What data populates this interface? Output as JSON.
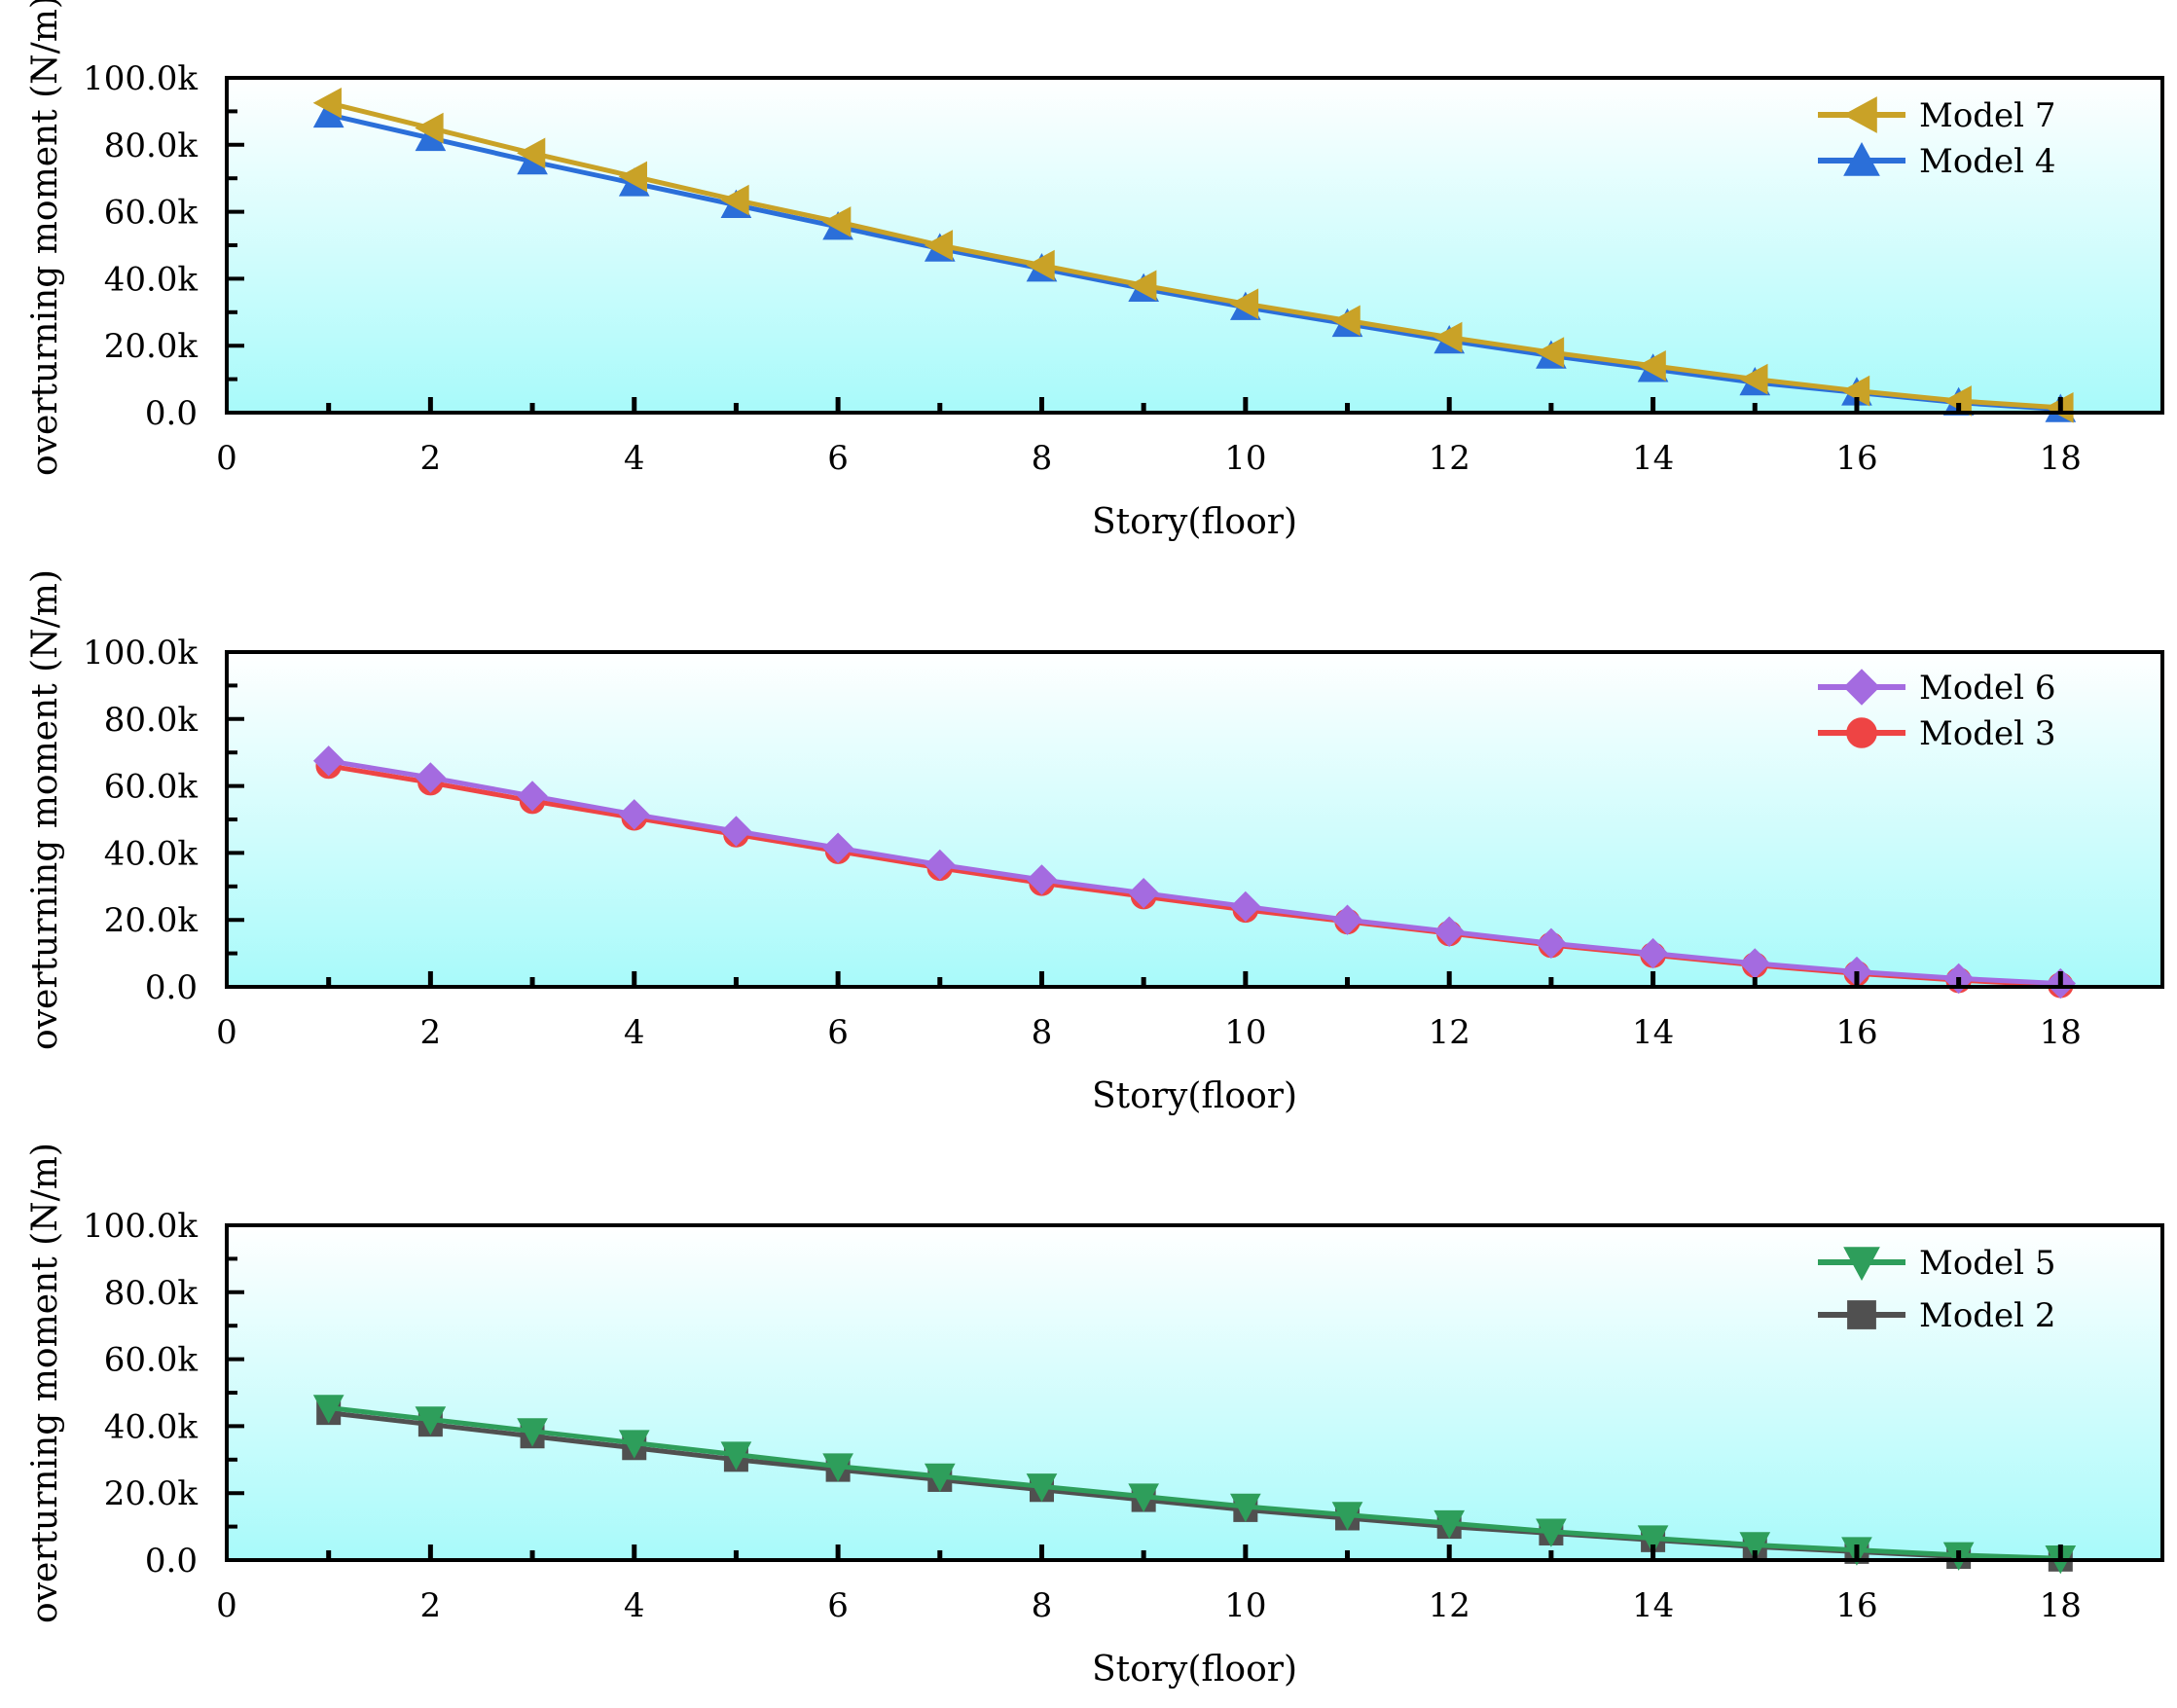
{
  "chart_data": [
    {
      "type": "line",
      "xlabel": "Story(floor)",
      "ylabel": "overturning moment (N/m)",
      "xlim": [
        0,
        19
      ],
      "ylim": [
        0,
        100000
      ],
      "xticks": [
        0,
        2,
        4,
        6,
        8,
        10,
        12,
        14,
        16,
        18
      ],
      "xtick_labels": [
        "0",
        "2",
        "4",
        "6",
        "8",
        "10",
        "12",
        "14",
        "16",
        "18"
      ],
      "yticks": [
        0,
        20000,
        40000,
        60000,
        80000,
        100000
      ],
      "ytick_labels": [
        "0.0",
        "20.0k",
        "40.0k",
        "60.0k",
        "80.0k",
        "100.0k"
      ],
      "legend_position": "top-right",
      "x": [
        1,
        2,
        3,
        4,
        5,
        6,
        7,
        8,
        9,
        10,
        11,
        12,
        13,
        14,
        15,
        16,
        17,
        18
      ],
      "series": [
        {
          "name": "Model 7",
          "color": "#C9A227",
          "marker": "triangle-left",
          "values": [
            92500,
            85000,
            77500,
            70500,
            63500,
            57000,
            50000,
            44000,
            38000,
            32500,
            27500,
            22500,
            18000,
            14000,
            10000,
            6500,
            3500,
            1500
          ]
        },
        {
          "name": "Model 4",
          "color": "#2B6FD9",
          "marker": "triangle-up",
          "values": [
            89000,
            82000,
            75000,
            68500,
            62000,
            55500,
            49000,
            43000,
            37000,
            31500,
            26500,
            21500,
            17000,
            13000,
            9000,
            6000,
            3000,
            1000
          ]
        }
      ]
    },
    {
      "type": "line",
      "xlabel": "Story(floor)",
      "ylabel": "overturning moment (N/m)",
      "xlim": [
        0,
        19
      ],
      "ylim": [
        0,
        100000
      ],
      "xticks": [
        0,
        2,
        4,
        6,
        8,
        10,
        12,
        14,
        16,
        18
      ],
      "xtick_labels": [
        "0",
        "2",
        "4",
        "6",
        "8",
        "10",
        "12",
        "14",
        "16",
        "18"
      ],
      "yticks": [
        0,
        20000,
        40000,
        60000,
        80000,
        100000
      ],
      "ytick_labels": [
        "0.0",
        "20.0k",
        "40.0k",
        "60.0k",
        "80.0k",
        "100.0k"
      ],
      "legend_position": "top-right",
      "x": [
        1,
        2,
        3,
        4,
        5,
        6,
        7,
        8,
        9,
        10,
        11,
        12,
        13,
        14,
        15,
        16,
        17,
        18
      ],
      "series": [
        {
          "name": "Model 6",
          "color": "#A46BE0",
          "marker": "diamond",
          "values": [
            67500,
            62500,
            57000,
            51500,
            46500,
            41500,
            36500,
            32000,
            28000,
            24000,
            20000,
            16500,
            13000,
            10000,
            7000,
            4500,
            2500,
            1000
          ]
        },
        {
          "name": "Model 3",
          "color": "#EE4444",
          "marker": "circle",
          "values": [
            66000,
            61000,
            55500,
            50500,
            45500,
            40500,
            35500,
            31000,
            27000,
            23000,
            19500,
            16000,
            12500,
            9500,
            6500,
            4000,
            2000,
            500
          ]
        }
      ]
    },
    {
      "type": "line",
      "xlabel": "Story(floor)",
      "ylabel": "overturning moment (N/m)",
      "xlim": [
        0,
        19
      ],
      "ylim": [
        0,
        100000
      ],
      "xticks": [
        0,
        2,
        4,
        6,
        8,
        10,
        12,
        14,
        16,
        18
      ],
      "xtick_labels": [
        "0",
        "2",
        "4",
        "6",
        "8",
        "10",
        "12",
        "14",
        "16",
        "18"
      ],
      "yticks": [
        0,
        20000,
        40000,
        60000,
        80000,
        100000
      ],
      "ytick_labels": [
        "0.0",
        "20.0k",
        "40.0k",
        "60.0k",
        "80.0k",
        "100.0k"
      ],
      "legend_position": "top-right",
      "x": [
        1,
        2,
        3,
        4,
        5,
        6,
        7,
        8,
        9,
        10,
        11,
        12,
        13,
        14,
        15,
        16,
        17,
        18
      ],
      "series": [
        {
          "name": "Model 5",
          "color": "#2E9E5B",
          "marker": "triangle-down",
          "values": [
            45500,
            42000,
            38500,
            35000,
            31500,
            28000,
            25000,
            22000,
            19000,
            16000,
            13500,
            11000,
            8500,
            6500,
            4500,
            3000,
            1500,
            500
          ]
        },
        {
          "name": "Model 2",
          "color": "#505050",
          "marker": "square",
          "values": [
            44000,
            40500,
            37000,
            33500,
            30000,
            27000,
            24000,
            21000,
            18000,
            15000,
            12500,
            10000,
            8000,
            6000,
            4000,
            2500,
            1000,
            200
          ]
        }
      ]
    }
  ]
}
